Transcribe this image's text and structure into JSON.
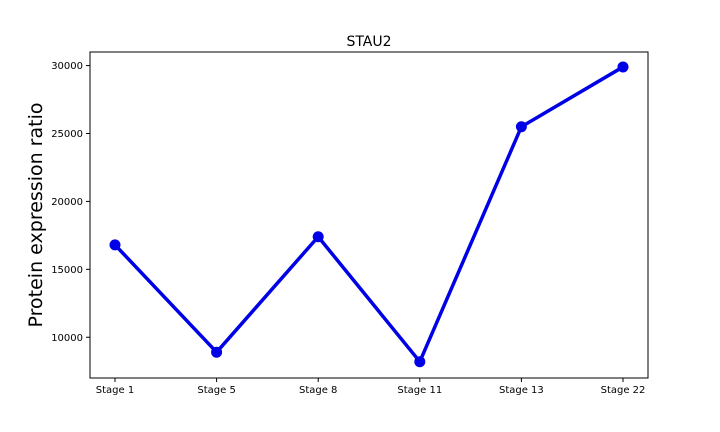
{
  "chart_data": {
    "type": "line",
    "title": "STAU2",
    "xlabel": "",
    "ylabel": "Protein expression ratio",
    "categories": [
      "Stage 1",
      "Stage 5",
      "Stage 8",
      "Stage 11",
      "Stage 13",
      "Stage 22"
    ],
    "series": [
      {
        "values": [
          16800,
          8900,
          17400,
          8200,
          25500,
          29900
        ]
      }
    ],
    "ylim": [
      7000,
      31000
    ],
    "yticks": [
      10000,
      15000,
      20000,
      25000,
      30000
    ],
    "ytick_labels": [
      "10000",
      "15000",
      "20000",
      "25000",
      "30000"
    ],
    "grid": false,
    "line_color": "#0000e6"
  }
}
